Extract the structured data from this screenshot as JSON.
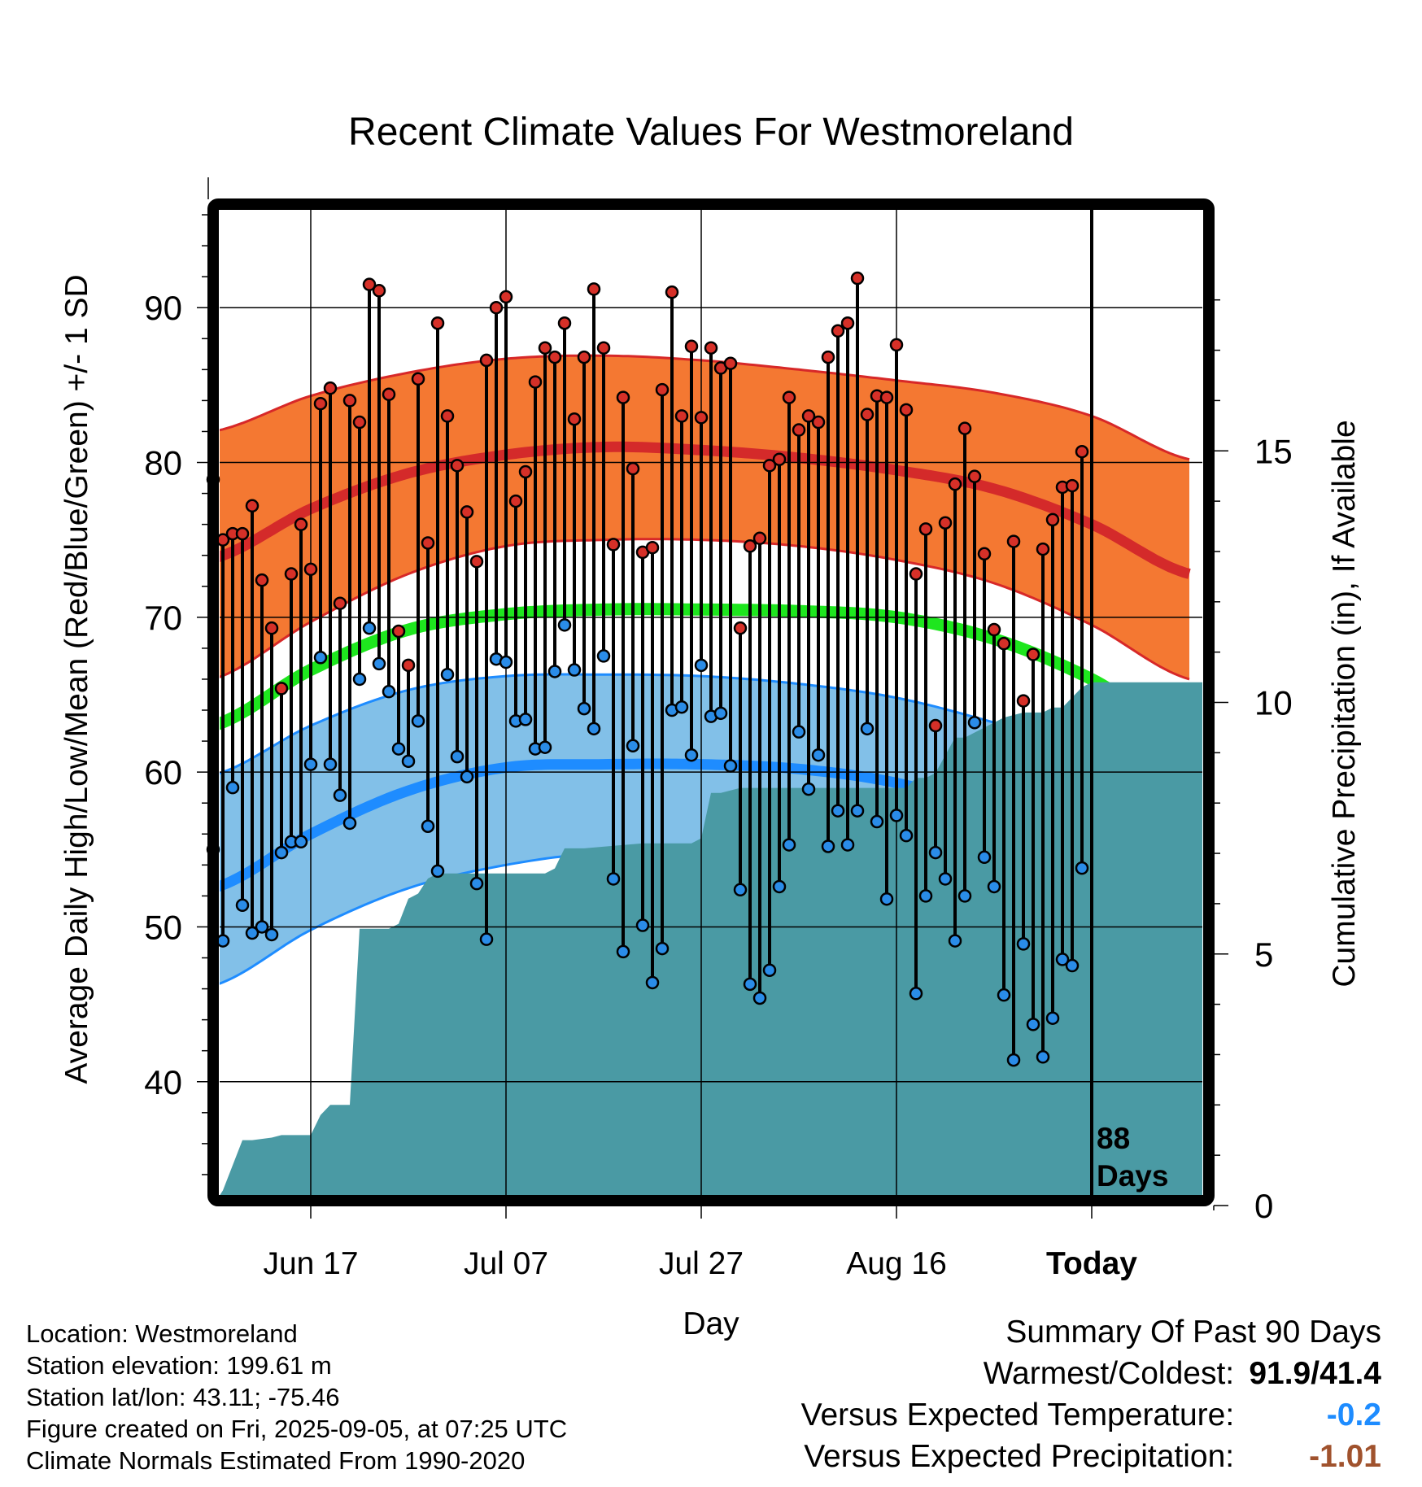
{
  "chart_data": {
    "type": "line",
    "title": "Recent Climate Values For Westmoreland",
    "xlabel": "Day",
    "ylabel": "Average Daily High/Low/Mean (Red/Blue/Green) +/- 1 SD",
    "y2label": "Cumulative Precipitation (in), If Available",
    "ylim": [
      32,
      97
    ],
    "y2lim": [
      0,
      20
    ],
    "xlim": [
      -10.5,
      92.5
    ],
    "yticks": [
      40,
      50,
      60,
      70,
      80,
      90
    ],
    "y2ticks": [
      0,
      5,
      10,
      15
    ],
    "xtick_positions": [
      0,
      20,
      40,
      60,
      80
    ],
    "xtick_labels": [
      "Jun 17",
      "Jul 07",
      "Jul 27",
      "Aug 16",
      "Today"
    ],
    "x_note": "x = day offset from Jun 17",
    "grid": true,
    "today_marker": {
      "x": 80,
      "label": "88\nDays"
    },
    "colors": {
      "high_band": "#f47832",
      "high_band_edge": "#d72828",
      "high_mean": "#d42a2a",
      "low_band": "#82c0e8",
      "low_band_edge": "#1e8cff",
      "low_mean": "#1e8cff",
      "mean_line": "#1ee61e",
      "precip": "#4a9aa4",
      "high_marker": "#d63028",
      "low_marker": "#2a8ce8"
    },
    "normals": {
      "x": [
        -10,
        0,
        10,
        20,
        30,
        40,
        50,
        60,
        70,
        80,
        90
      ],
      "high_mean": [
        73.8,
        77.0,
        79.3,
        80.5,
        81.0,
        80.8,
        80.3,
        79.5,
        78.3,
        76.0,
        72.8
      ],
      "high_sd_upper": [
        82.0,
        84.3,
        85.8,
        86.7,
        86.9,
        86.6,
        86.0,
        85.3,
        84.5,
        83.0,
        80.2
      ],
      "high_sd_lower": [
        66.0,
        69.7,
        72.8,
        74.6,
        75.0,
        75.0,
        74.6,
        73.7,
        72.2,
        69.5,
        66.0
      ],
      "mean": [
        63.0,
        66.6,
        69.2,
        70.2,
        70.5,
        70.5,
        70.4,
        70.0,
        68.6,
        66.0,
        62.3
      ],
      "low_mean": [
        52.5,
        56.0,
        58.8,
        60.3,
        60.5,
        60.5,
        60.2,
        59.3,
        57.5,
        55.3,
        51.5
      ],
      "low_sd_upper": [
        59.8,
        63.0,
        65.3,
        66.2,
        66.3,
        66.2,
        65.7,
        64.8,
        63.2,
        61.3,
        59.3
      ],
      "low_sd_lower": [
        46.2,
        49.8,
        52.5,
        54.0,
        54.8,
        54.8,
        54.3,
        52.8,
        50.3,
        47.5,
        44.5
      ]
    },
    "series": [
      {
        "name": "High",
        "x": [
          -10,
          -9,
          -8,
          -7,
          -6,
          -5,
          -4,
          -3,
          -2,
          -1,
          0,
          1,
          2,
          3,
          4,
          5,
          6,
          7,
          8,
          9,
          10,
          11,
          12,
          13,
          14,
          15,
          16,
          17,
          18,
          19,
          20,
          21,
          22,
          23,
          24,
          25,
          26,
          27,
          28,
          29,
          30,
          31,
          32,
          33,
          34,
          35,
          36,
          37,
          38,
          39,
          40,
          41,
          42,
          43,
          44,
          45,
          46,
          47,
          48,
          49,
          50,
          51,
          52,
          53,
          54,
          55,
          56,
          57,
          58,
          59,
          60,
          61,
          62,
          63,
          64,
          65,
          66,
          67,
          68,
          69,
          70,
          71,
          72,
          73,
          74,
          75,
          76,
          77,
          78,
          79
        ],
        "values": [
          78.9,
          75.0,
          75.4,
          75.4,
          77.2,
          72.4,
          69.3,
          65.4,
          72.8,
          76.0,
          73.1,
          83.8,
          84.8,
          70.9,
          84.0,
          82.6,
          91.5,
          91.1,
          84.4,
          69.1,
          66.9,
          85.4,
          74.8,
          89.0,
          83.0,
          79.8,
          76.8,
          73.6,
          86.6,
          90.0,
          90.7,
          77.5,
          79.4,
          85.2,
          87.4,
          86.8,
          89.0,
          82.8,
          86.8,
          91.2,
          87.4,
          74.7,
          84.2,
          79.6,
          74.2,
          74.5,
          84.7,
          91.0,
          83.0,
          87.5,
          82.9,
          87.4,
          86.1,
          86.4,
          69.3,
          74.6,
          75.1,
          79.8,
          80.2,
          84.2,
          82.1,
          83.0,
          82.6,
          86.8,
          88.5,
          89.0,
          91.9,
          83.1,
          84.3,
          84.2,
          87.6,
          83.4,
          72.8,
          75.7,
          63.0,
          76.1,
          78.6,
          82.2,
          79.1,
          74.1,
          69.2,
          68.3,
          74.9,
          64.6,
          67.6,
          74.4,
          76.3,
          78.4,
          78.5,
          80.7
        ]
      },
      {
        "name": "Low",
        "x": [
          -10,
          -9,
          -8,
          -7,
          -6,
          -5,
          -4,
          -3,
          -2,
          -1,
          0,
          1,
          2,
          3,
          4,
          5,
          6,
          7,
          8,
          9,
          10,
          11,
          12,
          13,
          14,
          15,
          16,
          17,
          18,
          19,
          20,
          21,
          22,
          23,
          24,
          25,
          26,
          27,
          28,
          29,
          30,
          31,
          32,
          33,
          34,
          35,
          36,
          37,
          38,
          39,
          40,
          41,
          42,
          43,
          44,
          45,
          46,
          47,
          48,
          49,
          50,
          51,
          52,
          53,
          54,
          55,
          56,
          57,
          58,
          59,
          60,
          61,
          62,
          63,
          64,
          65,
          66,
          67,
          68,
          69,
          70,
          71,
          72,
          73,
          74,
          75,
          76,
          77,
          78,
          79
        ],
        "values": [
          55.0,
          49.1,
          59.0,
          51.4,
          49.6,
          50.0,
          49.5,
          54.8,
          55.5,
          55.5,
          60.5,
          67.4,
          60.5,
          58.5,
          56.7,
          66.0,
          69.3,
          67.0,
          65.2,
          61.5,
          60.7,
          63.3,
          56.5,
          53.6,
          66.3,
          61.0,
          59.7,
          52.8,
          49.2,
          67.3,
          67.1,
          63.3,
          63.4,
          61.5,
          61.6,
          66.5,
          69.5,
          66.6,
          64.1,
          62.8,
          67.5,
          53.1,
          48.4,
          61.7,
          50.1,
          46.4,
          48.6,
          64.0,
          64.2,
          61.1,
          66.9,
          63.6,
          63.8,
          60.4,
          52.4,
          46.3,
          45.4,
          47.2,
          52.6,
          55.3,
          62.6,
          58.9,
          61.1,
          55.2,
          57.5,
          55.3,
          57.5,
          62.8,
          56.8,
          51.8,
          57.2,
          55.9,
          45.7,
          52.0,
          54.8,
          53.1,
          49.1,
          52.0,
          63.2,
          54.5,
          52.6,
          45.6,
          41.4,
          48.9,
          43.7,
          41.6,
          44.1,
          47.9,
          47.5,
          53.8
        ]
      },
      {
        "name": "Cumulative Precipitation",
        "x": [
          -10,
          -9,
          -8,
          -7,
          -6,
          -4,
          -3,
          -1,
          0,
          1,
          2,
          3,
          4,
          5,
          7,
          8,
          9,
          10,
          11,
          12,
          13,
          14,
          15,
          24,
          25,
          26,
          27,
          28,
          34,
          36,
          38,
          39,
          40,
          41,
          42,
          44,
          48,
          56,
          61,
          62,
          63,
          64,
          66,
          67,
          69,
          70,
          71,
          73,
          74,
          75,
          76,
          77,
          79,
          80,
          92
        ],
        "values": [
          0.0,
          0.3,
          0.8,
          1.3,
          1.3,
          1.35,
          1.4,
          1.4,
          1.4,
          1.8,
          2.0,
          2.0,
          2.0,
          5.5,
          5.5,
          5.5,
          5.6,
          6.1,
          6.2,
          6.5,
          6.6,
          6.6,
          6.6,
          6.6,
          6.7,
          7.1,
          7.1,
          7.1,
          7.2,
          7.2,
          7.2,
          7.2,
          7.3,
          8.2,
          8.2,
          8.3,
          8.3,
          8.3,
          8.3,
          8.5,
          8.5,
          8.6,
          9.3,
          9.3,
          9.5,
          9.6,
          9.7,
          9.8,
          9.8,
          9.8,
          9.9,
          9.9,
          10.3,
          10.4,
          10.4
        ]
      }
    ]
  },
  "info": {
    "location": "Location: Westmoreland",
    "elevation": "Station elevation: 199.61 m",
    "latlon": "Station lat/lon: 43.11; -75.46",
    "created": "Figure created on Fri, 2025-09-05, at 07:25 UTC",
    "normals": "Climate Normals Estimated From 1990-2020"
  },
  "summary": {
    "title": "Summary Of Past 90 Days",
    "warm_cold_label": "Warmest/Coldest:",
    "warm_cold_value": "91.9/41.4",
    "temp_label": "Versus Expected Temperature:",
    "temp_value": "-0.2",
    "temp_color": "#1e8cff",
    "precip_label": "Versus Expected Precipitation:",
    "precip_value": "-1.01",
    "precip_color": "#a0522d"
  }
}
